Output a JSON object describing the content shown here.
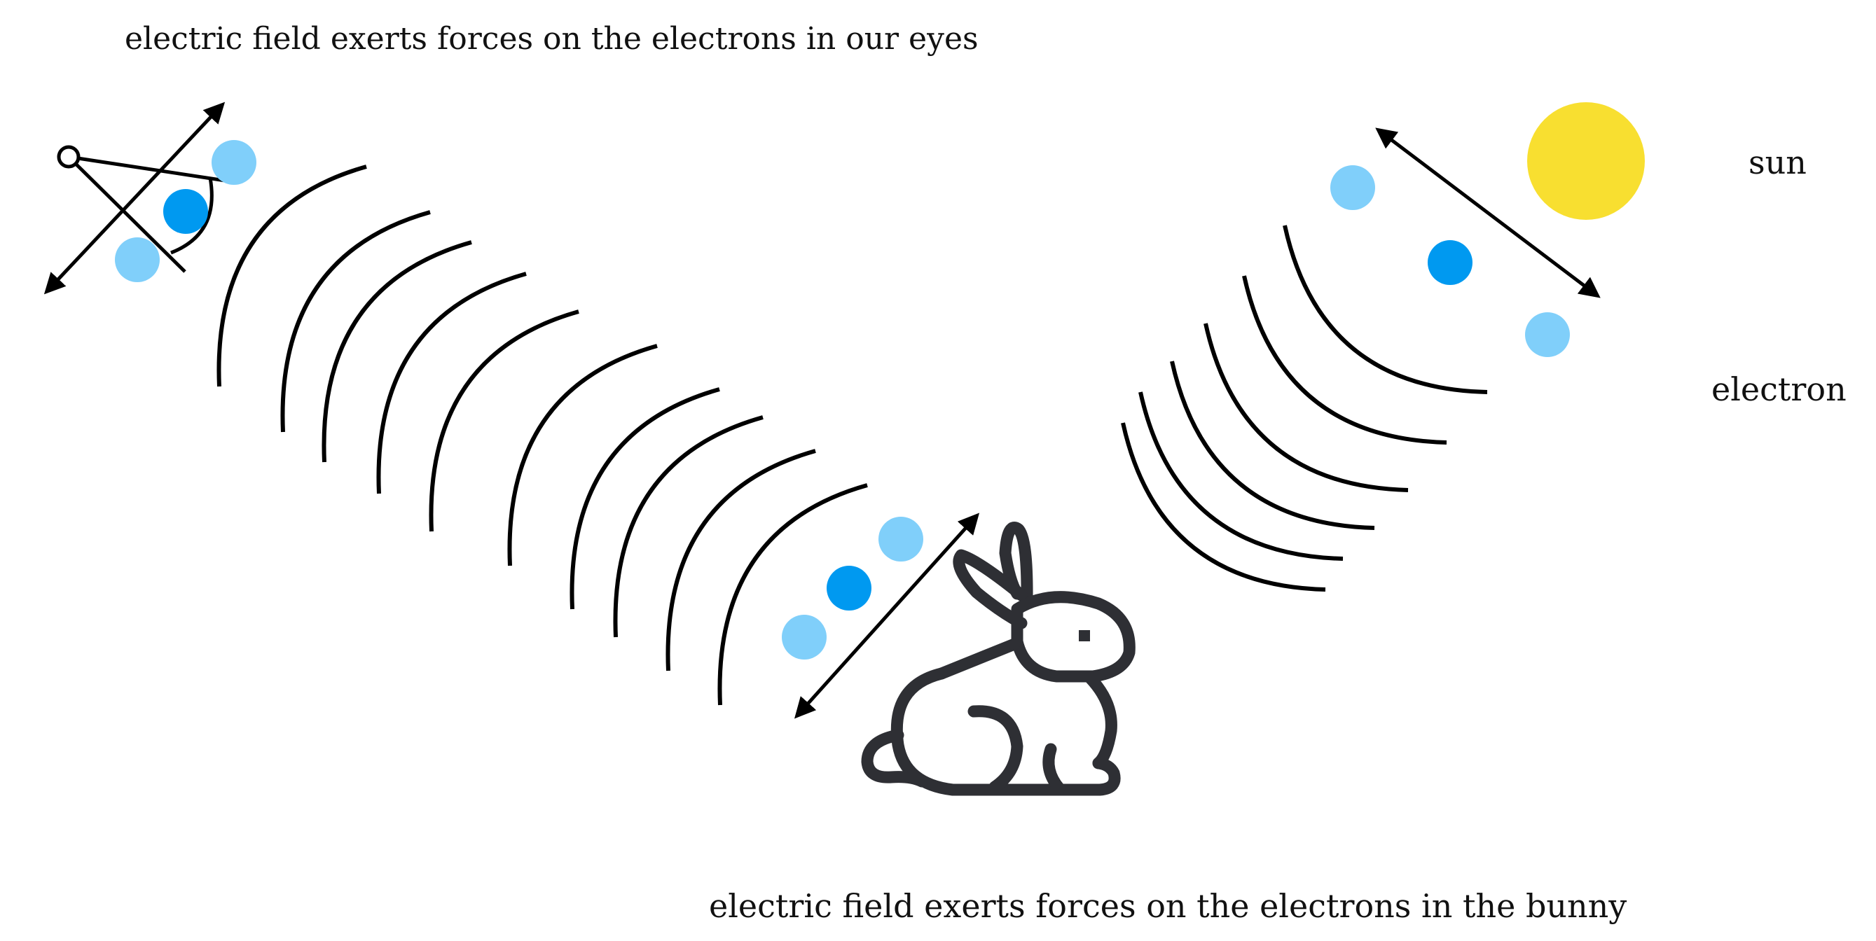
{
  "labels": {
    "eyes_caption": "electric field exerts forces on the electrons in our eyes",
    "bunny_caption": "electric field exerts forces on the electrons in the bunny",
    "sun_label": "sun",
    "electron_label": "electron"
  },
  "colors": {
    "electron_light": "#80cffa",
    "electron_dark": "#0099f0",
    "sun": "#f8df30",
    "wave": "#000000",
    "bunny": "#2e2f34",
    "text": "#111111"
  },
  "icons": [
    "eye-icon",
    "bunny-icon",
    "sun-icon",
    "electron-icon",
    "double-arrow-icon"
  ]
}
